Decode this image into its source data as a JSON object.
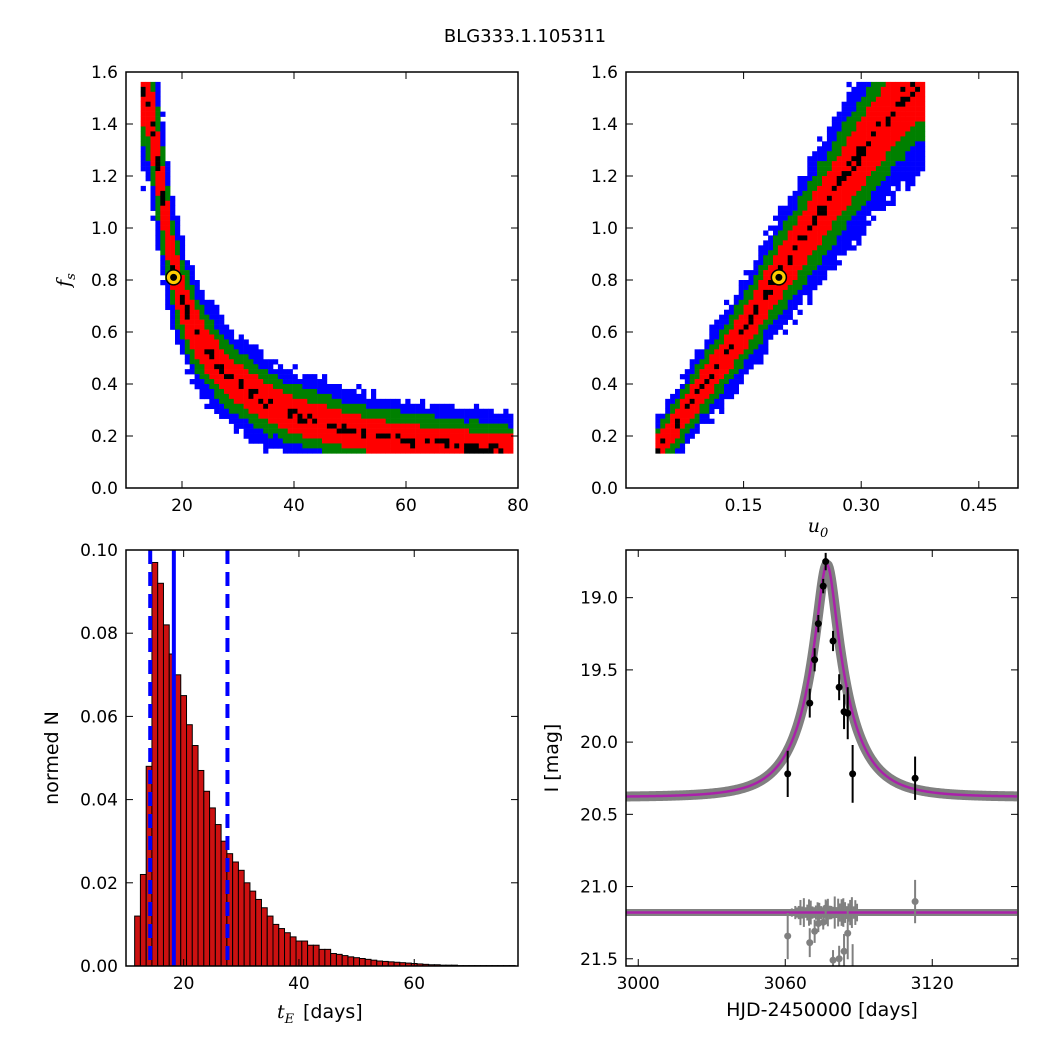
{
  "figure": {
    "title": "BLG333.1.105311"
  },
  "colors": {
    "sigma1": "#ff0000",
    "sigma2": "#008000",
    "sigma3": "#0000ff",
    "best_bins": "#000000",
    "best_point_fill": "#ffcc00",
    "hist_bar": "#cc1111",
    "hist_lines": "#0000ff",
    "model_band": "#808080",
    "best_model": "#aa22aa"
  },
  "chart_data": [
    {
      "id": "tE_vs_fs",
      "type": "heatmap",
      "xlabel": "",
      "ylabel": "f_s",
      "xlim": [
        10,
        80
      ],
      "ylim": [
        0.0,
        1.6
      ],
      "x_ticks": [
        "20",
        "40",
        "60",
        "80"
      ],
      "y_ticks": [
        "0.0",
        "0.2",
        "0.4",
        "0.6",
        "0.8",
        "1.0",
        "1.2",
        "1.4",
        "1.6"
      ],
      "ridge": [
        [
          12.5,
          1.57
        ],
        [
          14,
          1.5
        ],
        [
          15,
          1.35
        ],
        [
          16,
          1.2
        ],
        [
          17,
          1.05
        ],
        [
          18,
          0.9
        ],
        [
          19,
          0.8
        ],
        [
          20,
          0.72
        ],
        [
          22,
          0.62
        ],
        [
          24,
          0.54
        ],
        [
          27,
          0.46
        ],
        [
          30,
          0.4
        ],
        [
          35,
          0.33
        ],
        [
          40,
          0.28
        ],
        [
          45,
          0.25
        ],
        [
          50,
          0.22
        ],
        [
          55,
          0.2
        ],
        [
          60,
          0.18
        ],
        [
          65,
          0.17
        ],
        [
          70,
          0.16
        ],
        [
          75,
          0.15
        ],
        [
          78,
          0.14
        ]
      ],
      "best_fit": [
        18.5,
        0.81
      ]
    },
    {
      "id": "u0_vs_fs",
      "type": "heatmap",
      "xlabel": "u_0",
      "ylabel": "",
      "xlim": [
        0.0,
        0.5
      ],
      "ylim": [
        0.0,
        1.6
      ],
      "x_ticks": [
        "0.15",
        "0.30",
        "0.45"
      ],
      "y_ticks": [
        "0.0",
        "0.2",
        "0.4",
        "0.6",
        "0.8",
        "1.0",
        "1.2",
        "1.4",
        "1.6"
      ],
      "ridge": [
        [
          0.04,
          0.15
        ],
        [
          0.07,
          0.27
        ],
        [
          0.1,
          0.4
        ],
        [
          0.13,
          0.52
        ],
        [
          0.16,
          0.65
        ],
        [
          0.19,
          0.8
        ],
        [
          0.22,
          0.93
        ],
        [
          0.25,
          1.07
        ],
        [
          0.28,
          1.2
        ],
        [
          0.31,
          1.33
        ],
        [
          0.34,
          1.45
        ],
        [
          0.37,
          1.56
        ]
      ],
      "best_fit": [
        0.195,
        0.81
      ]
    },
    {
      "id": "tE_histogram",
      "type": "bar",
      "xlabel": "t_E",
      "xlabel_unit": "[days]",
      "ylabel": "normed N",
      "xlim": [
        10,
        78
      ],
      "ylim": [
        0.0,
        0.1
      ],
      "x_ticks": [
        "20",
        "40",
        "60"
      ],
      "y_ticks": [
        "0.00",
        "0.02",
        "0.04",
        "0.06",
        "0.08",
        "0.10"
      ],
      "bin_start": 10.5,
      "bin_width": 1.0,
      "values": [
        0.0,
        0.012,
        0.022,
        0.048,
        0.097,
        0.092,
        0.082,
        0.075,
        0.07,
        0.065,
        0.058,
        0.053,
        0.047,
        0.042,
        0.038,
        0.034,
        0.03,
        0.027,
        0.025,
        0.023,
        0.02,
        0.018,
        0.016,
        0.014,
        0.012,
        0.01,
        0.009,
        0.008,
        0.007,
        0.006,
        0.006,
        0.005,
        0.005,
        0.004,
        0.004,
        0.003,
        0.0028,
        0.0025,
        0.0022,
        0.002,
        0.0018,
        0.0016,
        0.0014,
        0.0012,
        0.0011,
        0.001,
        0.0009,
        0.0008,
        0.0007,
        0.0006,
        0.0005,
        0.0004,
        0.0003,
        0.0003,
        0.0002,
        0.0002,
        0.0002,
        0.0001,
        0.0001,
        0.0001,
        0.0001,
        0.0001,
        0.0001,
        0.0001,
        0.0001,
        0.0001,
        0.0001
      ],
      "vlines": [
        {
          "x": 18.3,
          "style": "solid"
        },
        {
          "x": 14.2,
          "style": "dashed"
        },
        {
          "x": 27.6,
          "style": "dashed"
        }
      ]
    },
    {
      "id": "light_curve",
      "type": "scatter",
      "xlabel": "HJD-2450000 [days]",
      "ylabel": "I [mag]",
      "xlim": [
        2995,
        3155
      ],
      "ylim": [
        21.55,
        18.67
      ],
      "x_ticks": [
        "3000",
        "3060",
        "3120"
      ],
      "y_ticks": [
        "19.0",
        "19.5",
        "20.0",
        "20.5",
        "21.0",
        "21.5"
      ],
      "model": {
        "t0": 3077.0,
        "tE": 18.3,
        "u0": 0.195,
        "fs": 0.81,
        "baseline": 20.38
      },
      "residual_offset": 21.18,
      "points": [
        {
          "t": 3061.0,
          "mag": 20.22,
          "err": 0.16
        },
        {
          "t": 3070.0,
          "mag": 19.73,
          "err": 0.1
        },
        {
          "t": 3072.0,
          "mag": 19.43,
          "err": 0.08
        },
        {
          "t": 3073.5,
          "mag": 19.18,
          "err": 0.06
        },
        {
          "t": 3075.5,
          "mag": 18.92,
          "err": 0.05
        },
        {
          "t": 3076.5,
          "mag": 18.75,
          "err": 0.06
        },
        {
          "t": 3079.5,
          "mag": 19.3,
          "err": 0.07
        },
        {
          "t": 3082.0,
          "mag": 19.62,
          "err": 0.09
        },
        {
          "t": 3084.0,
          "mag": 19.79,
          "err": 0.12
        },
        {
          "t": 3085.5,
          "mag": 19.8,
          "err": 0.18
        },
        {
          "t": 3087.5,
          "mag": 20.22,
          "err": 0.2
        },
        {
          "t": 3113.0,
          "mag": 20.25,
          "err": 0.15
        }
      ]
    }
  ]
}
